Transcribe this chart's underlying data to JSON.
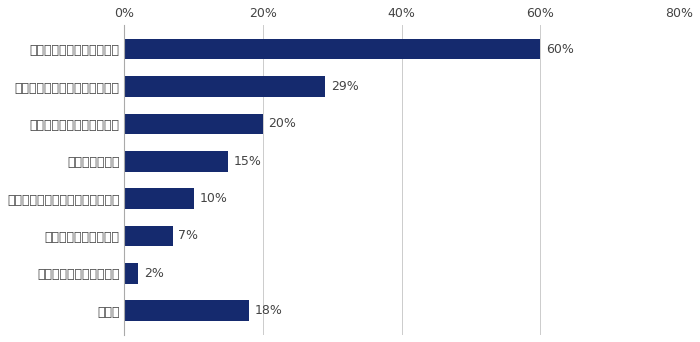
{
  "categories": [
    "新しいスキルが身についた",
    "新しい仕事にチャレンジできた",
    "新しいスキルで成果が出た",
    "資格を取得した",
    "社内で評価が上がった・昇格した",
    "給与・年収が上がった",
    "希望の部署に異動できた",
    "その他"
  ],
  "values": [
    60,
    29,
    20,
    15,
    10,
    7,
    2,
    18
  ],
  "bar_color": "#152a6e",
  "label_color": "#444444",
  "value_color": "#444444",
  "background_color": "#ffffff",
  "xlim": [
    0,
    80
  ],
  "xticks": [
    0,
    20,
    40,
    60,
    80
  ],
  "xtick_labels": [
    "0%",
    "20%",
    "40%",
    "60%",
    "80%"
  ],
  "bar_height": 0.55,
  "fontsize_ticks": 9,
  "fontsize_labels": 9,
  "fontsize_values": 9,
  "grid_color": "#cccccc",
  "grid_linewidth": 0.7
}
